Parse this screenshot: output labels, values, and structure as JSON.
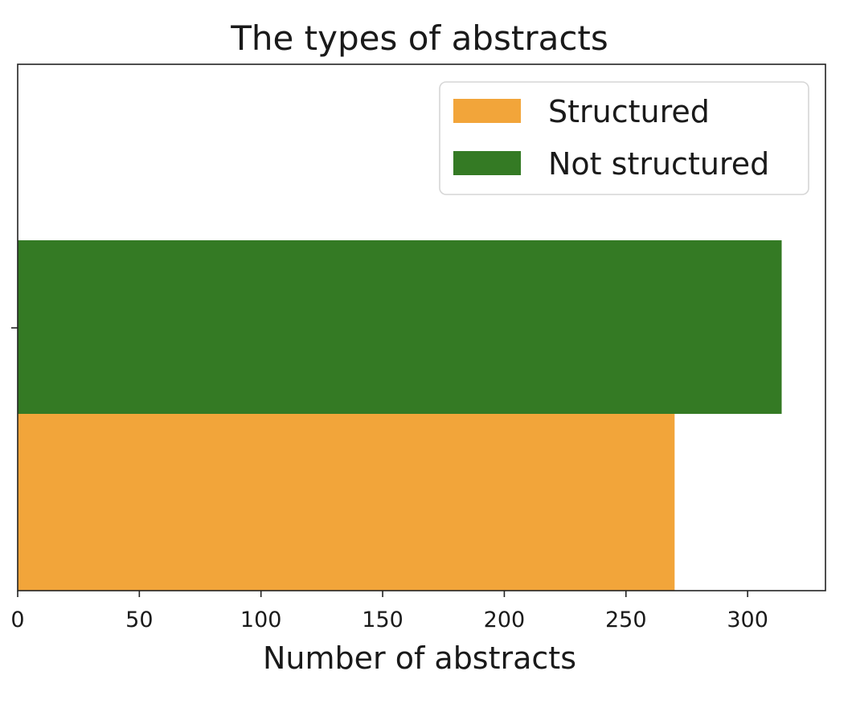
{
  "chart_data": {
    "type": "bar",
    "orientation": "horizontal",
    "title": "The types of abstracts",
    "xlabel": "Number of abstracts",
    "ylabel": "",
    "xlim": [
      0,
      332
    ],
    "x_ticks": [
      0,
      50,
      100,
      150,
      200,
      250,
      300
    ],
    "grid": false,
    "legend_position": "top-right",
    "series": [
      {
        "name": "Structured",
        "value": 270,
        "color": "#f2a53a"
      },
      {
        "name": "Not structured",
        "value": 314,
        "color": "#347a24"
      }
    ]
  }
}
